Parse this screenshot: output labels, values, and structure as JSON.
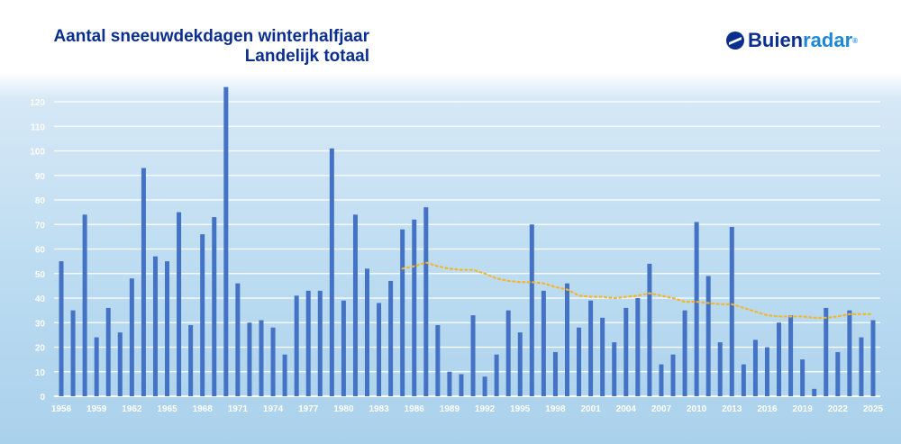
{
  "header": {
    "title_line1": "Aantal sneeuwdekdagen winterhalfjaar",
    "title_line2": "Landelijk totaal"
  },
  "logo": {
    "text_part1": "Buien",
    "text_part2": "radar",
    "mark": "®"
  },
  "chart_data": {
    "type": "bar",
    "title": "Aantal sneeuwdekdagen winterhalfjaar Landelijk totaal",
    "xlabel": "",
    "ylabel": "",
    "ylim": [
      0,
      126
    ],
    "yticks": [
      0,
      10,
      20,
      30,
      40,
      50,
      60,
      70,
      80,
      90,
      100,
      110,
      120
    ],
    "xtick_labels": [
      "1956",
      "1959",
      "1962",
      "1965",
      "1968",
      "1971",
      "1974",
      "1977",
      "1980",
      "1983",
      "1986",
      "1989",
      "1992",
      "1995",
      "1998",
      "2001",
      "2004",
      "2007",
      "2010",
      "2013",
      "2016",
      "2019",
      "2022",
      "2025"
    ],
    "grid": true,
    "colors": {
      "bars": "#4472c4",
      "trend": "#f5b52a"
    },
    "categories": [
      1956,
      1957,
      1958,
      1959,
      1960,
      1961,
      1962,
      1963,
      1964,
      1965,
      1966,
      1967,
      1968,
      1969,
      1970,
      1971,
      1972,
      1973,
      1974,
      1975,
      1976,
      1977,
      1978,
      1979,
      1980,
      1981,
      1982,
      1983,
      1984,
      1985,
      1986,
      1987,
      1988,
      1989,
      1990,
      1991,
      1992,
      1993,
      1994,
      1995,
      1996,
      1997,
      1998,
      1999,
      2000,
      2001,
      2002,
      2003,
      2004,
      2005,
      2006,
      2007,
      2008,
      2009,
      2010,
      2011,
      2012,
      2013,
      2014,
      2015,
      2016,
      2017,
      2018,
      2019,
      2020,
      2021,
      2022,
      2023,
      2024,
      2025
    ],
    "values": [
      55,
      35,
      74,
      24,
      36,
      26,
      48,
      93,
      57,
      55,
      75,
      29,
      66,
      73,
      126,
      46,
      30,
      31,
      28,
      17,
      41,
      43,
      43,
      101,
      39,
      74,
      52,
      38,
      47,
      68,
      72,
      77,
      29,
      10,
      9,
      33,
      8,
      17,
      35,
      26,
      70,
      43,
      18,
      46,
      28,
      39,
      32,
      22,
      36,
      40,
      54,
      13,
      17,
      35,
      71,
      49,
      22,
      69,
      13,
      23,
      20,
      30,
      33,
      15,
      3,
      36,
      18,
      35,
      24,
      31
    ],
    "trend": {
      "x": [
        1985,
        1986,
        1987,
        1988,
        1989,
        1990,
        1991,
        1992,
        1993,
        1994,
        1995,
        1996,
        1997,
        1998,
        1999,
        2000,
        2001,
        2002,
        2003,
        2004,
        2005,
        2006,
        2007,
        2008,
        2009,
        2010,
        2011,
        2012,
        2013,
        2014,
        2015,
        2016,
        2017,
        2018,
        2019,
        2020,
        2021,
        2022,
        2023,
        2024,
        2025
      ],
      "y": [
        52,
        53,
        54.5,
        53,
        52,
        51.5,
        51.5,
        50,
        48,
        47,
        46.5,
        46.5,
        46,
        44.5,
        43.5,
        41,
        40.5,
        40.5,
        40,
        40.5,
        41,
        42,
        41,
        40,
        38.5,
        38.5,
        38,
        37.5,
        37.5,
        36,
        34.5,
        33,
        32.5,
        32.5,
        32.5,
        32,
        32,
        32.5,
        33.5,
        33.5,
        33.5
      ]
    }
  }
}
